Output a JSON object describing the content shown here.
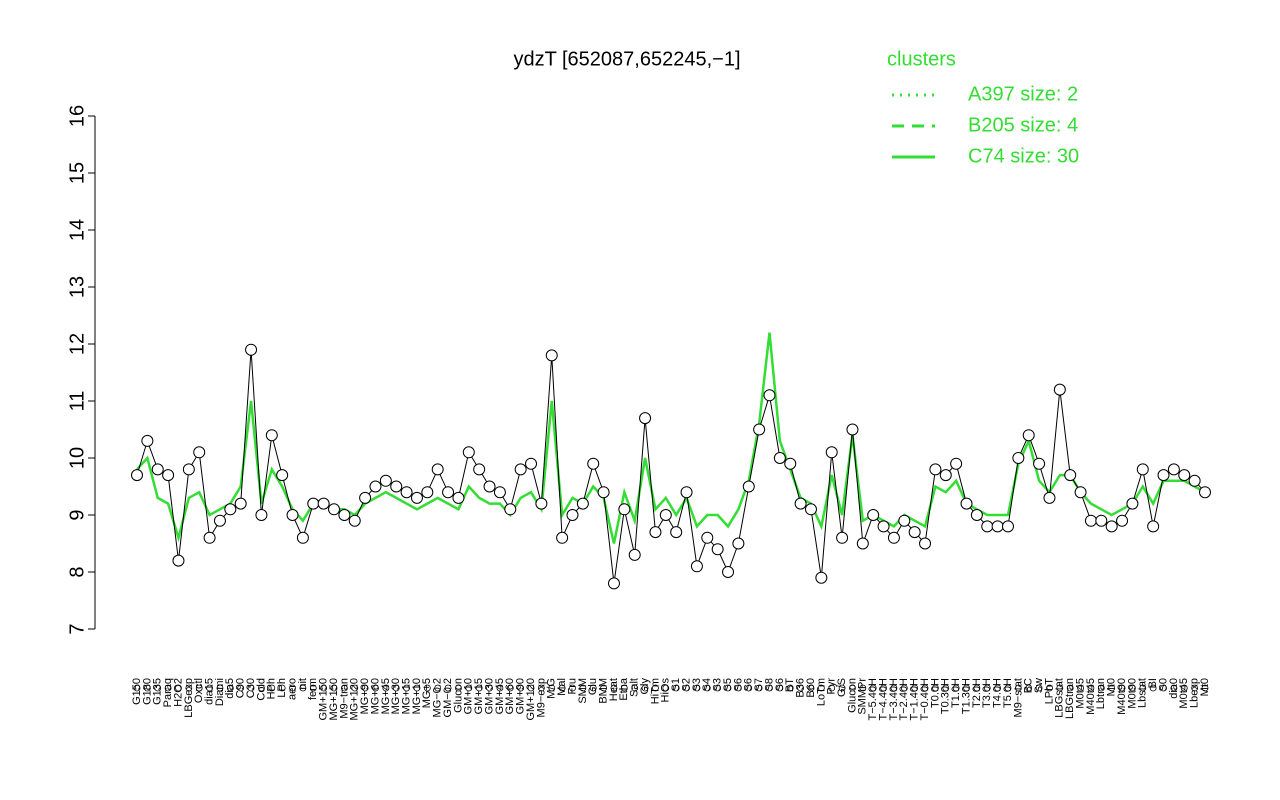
{
  "chart_data": {
    "type": "line",
    "title": "ydzT [652087,652245,−1]",
    "legend_title": "clusters",
    "categories": [
      "G150",
      "G180",
      "G135",
      "Paraq",
      "H2O2",
      "LBGexp",
      "Oxctl",
      "dia15",
      "Diami",
      "dia5",
      "C90",
      "C30",
      "Cold",
      "HPh",
      "LPh",
      "aero",
      "nit",
      "ferm",
      "GM+150",
      "MG+150",
      "M9−tran",
      "MG+120",
      "MG+90",
      "MG+60",
      "MG+45",
      "MG+30",
      "MG+15",
      "MG+10",
      "MG+5",
      "MG−0.2",
      "GM−0.2",
      "Glucon",
      "GM+10",
      "GM+15",
      "GM+30",
      "GM+45",
      "GM+60",
      "GM+90",
      "GM+120",
      "M9−exp",
      "M/G",
      "Mal",
      "Fru",
      "SMM",
      "Glu",
      "BMM",
      "Heat",
      "Etha",
      "Salt",
      "Gly",
      "HiTm",
      "HiOs",
      "S1",
      "S2",
      "S3",
      "S4",
      "S3",
      "S5",
      "S6",
      "S6",
      "S7",
      "S8",
      "S6",
      "BT",
      "B36",
      "B60",
      "LoTm",
      "Pyr",
      "G/S",
      "Glucon",
      "SMMPr",
      "T−5.40H",
      "T−4.40H",
      "T−3.40H",
      "T−2.40H",
      "T−1.40H",
      "T−0.40H",
      "T0.0H",
      "T0.30H",
      "T1.0H",
      "T1.30H",
      "T2.0H",
      "T3.0H",
      "T4.0H",
      "T5.0H",
      "M9−stat",
      "BC",
      "Sw",
      "LPhT",
      "LBGstat",
      "LBGtran",
      "M0t45",
      "M40t45",
      "Lbtran",
      "Mt0",
      "M40t90",
      "M0t90",
      "Lbstat",
      "BI",
      "S0",
      "dia0",
      "M0t45",
      "Lbexp",
      "Mt0"
    ],
    "values": [
      9.7,
      10.3,
      9.8,
      9.7,
      8.2,
      9.8,
      10.1,
      8.6,
      8.9,
      9.1,
      9.2,
      11.9,
      9.0,
      10.4,
      9.7,
      9.0,
      8.6,
      9.2,
      9.2,
      9.1,
      9.0,
      8.9,
      9.3,
      9.5,
      9.6,
      9.5,
      9.4,
      9.3,
      9.4,
      9.8,
      9.4,
      9.3,
      10.1,
      9.8,
      9.5,
      9.4,
      9.1,
      9.8,
      9.9,
      9.2,
      11.8,
      8.6,
      9.0,
      9.2,
      9.9,
      9.4,
      7.8,
      9.1,
      8.3,
      10.7,
      8.7,
      9.0,
      8.7,
      9.4,
      8.1,
      8.6,
      8.4,
      8.0,
      8.5,
      9.5,
      10.5,
      11.1,
      10.0,
      9.9,
      9.2,
      9.1,
      7.9,
      10.1,
      8.6,
      10.5,
      8.5,
      9.0,
      8.8,
      8.6,
      8.9,
      8.7,
      8.5,
      9.8,
      9.7,
      9.9,
      9.2,
      9.0,
      8.8,
      8.8,
      8.8,
      10.0,
      10.4,
      9.9,
      9.3,
      11.2,
      9.7,
      9.4,
      8.9,
      8.9,
      8.8,
      8.9,
      9.2,
      9.8,
      8.8,
      9.7,
      9.8,
      9.7,
      9.6,
      9.4
    ],
    "color": "#000000",
    "series": [
      {
        "name": "A397 size: 2",
        "color": "#33dd33",
        "dash": "dotted"
      },
      {
        "name": "B205 size: 4",
        "color": "#33dd33",
        "dash": "dashed"
      },
      {
        "name": "C74 size: 30",
        "color": "#33dd33",
        "dash": "solid",
        "values": [
          9.8,
          10.0,
          9.3,
          9.2,
          8.6,
          9.3,
          9.4,
          9.0,
          9.1,
          9.2,
          9.5,
          11.0,
          9.2,
          9.8,
          9.5,
          9.1,
          8.9,
          9.2,
          9.2,
          9.1,
          9.1,
          9.0,
          9.2,
          9.3,
          9.4,
          9.3,
          9.2,
          9.1,
          9.2,
          9.3,
          9.2,
          9.1,
          9.5,
          9.3,
          9.2,
          9.2,
          9.0,
          9.3,
          9.4,
          9.1,
          11.0,
          9.0,
          9.3,
          9.2,
          9.5,
          9.3,
          8.5,
          9.4,
          8.9,
          10.0,
          9.1,
          9.3,
          9.0,
          9.3,
          8.8,
          9.0,
          9.0,
          8.8,
          9.1,
          9.6,
          10.6,
          12.2,
          10.3,
          9.8,
          9.3,
          9.2,
          8.8,
          9.7,
          9.0,
          10.4,
          8.9,
          9.0,
          8.9,
          8.8,
          9.0,
          8.9,
          8.8,
          9.5,
          9.4,
          9.6,
          9.2,
          9.1,
          9.0,
          9.0,
          9.0,
          9.9,
          10.3,
          9.6,
          9.4,
          9.7,
          9.7,
          9.4,
          9.2,
          9.1,
          9.0,
          9.1,
          9.2,
          9.5,
          9.2,
          9.6,
          9.6,
          9.6,
          9.5,
          9.4
        ]
      }
    ],
    "ylim": [
      7,
      16
    ],
    "yticks": [
      7,
      8,
      9,
      10,
      11,
      12,
      13,
      14,
      15,
      16
    ]
  }
}
